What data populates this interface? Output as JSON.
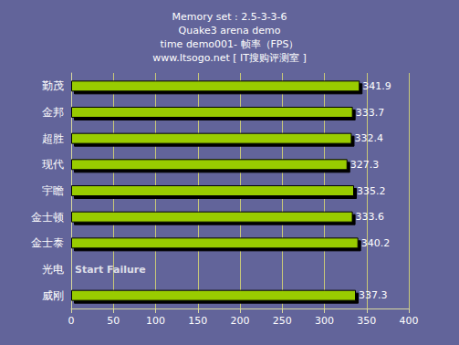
{
  "chart_data": {
    "type": "bar",
    "title": [
      "Memory set : 2.5-3-3-6",
      "Quake3 arena demo",
      "time demo001- 帧率（FPS）",
      "www.Itsogo.net [ IT搜购评测室 ]"
    ],
    "orientation": "horizontal",
    "categories": [
      "勤茂",
      "金邦",
      "超胜",
      "现代",
      "宇瞻",
      "金士顿",
      "金士泰",
      "光电",
      "威刚"
    ],
    "values": [
      341.9,
      333.7,
      332.4,
      327.3,
      335.2,
      333.6,
      340.2,
      null,
      337.3
    ],
    "annotations": [
      {
        "category": "光电",
        "text": "Start Failure"
      }
    ],
    "color": "#99cc00",
    "xlim": [
      0,
      400
    ],
    "xticks": [
      0,
      50,
      100,
      150,
      200,
      250,
      300,
      350,
      400
    ],
    "grid": true,
    "data_labels": true
  }
}
